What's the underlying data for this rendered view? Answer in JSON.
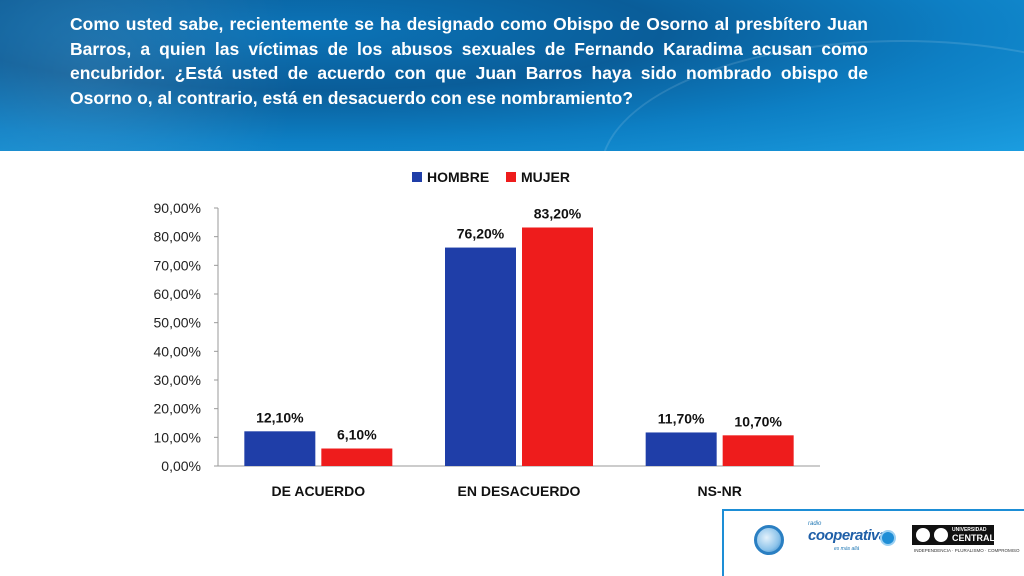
{
  "question": "Como usted sabe, recientemente se ha designado como Obispo de Osorno al presbítero Juan Barros, a quien las víctimas de los abusos sexuales de Fernando Karadima acusan como encubridor.  ¿Está usted de acuerdo con que Juan Barros haya sido nombrado obispo de Osorno o, al contrario, está en desacuerdo con ese nombramiento?",
  "chart_data": {
    "type": "bar",
    "categories": [
      "DE ACUERDO",
      "EN DESACUERDO",
      "NS-NR"
    ],
    "series": [
      {
        "name": "HOMBRE",
        "color": "#1f3ea8",
        "values": [
          12.1,
          76.2,
          11.7
        ],
        "labels": [
          "12,10%",
          "76,20%",
          "11,70%"
        ]
      },
      {
        "name": "MUJER",
        "color": "#ee1c1c",
        "values": [
          6.1,
          83.2,
          10.7
        ],
        "labels": [
          "6,10%",
          "83,20%",
          "10,70%"
        ]
      }
    ],
    "ylim": [
      0,
      90
    ],
    "yticks": [
      "0,00%",
      "10,00%",
      "20,00%",
      "30,00%",
      "40,00%",
      "50,00%",
      "60,00%",
      "70,00%",
      "80,00%",
      "90,00%"
    ],
    "legend": "top",
    "grid": false,
    "title": "",
    "xlabel": "",
    "ylabel": ""
  },
  "logos": {
    "coop_small": "radio",
    "coop_main": "cooperativa",
    "coop_tag": "es más allá",
    "uc_line1": "UNIVERSIDAD",
    "uc_line2": "CENTRAL",
    "uc_tag": "INDEPENDENCIA · PLURALISMO · COMPROMISO"
  }
}
